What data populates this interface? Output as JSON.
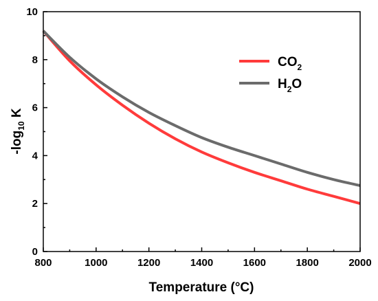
{
  "chart_data": {
    "type": "line",
    "xlabel": "Temperature (°C)",
    "ylabel_parts": {
      "main": "-log",
      "sub": "10",
      "tail": " K"
    },
    "xlim": [
      800,
      2000
    ],
    "ylim": [
      0,
      10
    ],
    "xticks": [
      800,
      1000,
      1200,
      1400,
      1600,
      1800,
      2000
    ],
    "yticks": [
      0,
      2,
      4,
      6,
      8,
      10
    ],
    "grid": false,
    "legend_position": "top-right",
    "x": [
      800,
      900,
      1000,
      1100,
      1200,
      1300,
      1400,
      1500,
      1600,
      1700,
      1800,
      1900,
      2000
    ],
    "series": [
      {
        "name_parts": {
          "pre": "CO",
          "sub": "2",
          "post": ""
        },
        "color": "#ff3b3b",
        "values": [
          9.2,
          7.95,
          6.95,
          6.1,
          5.35,
          4.7,
          4.15,
          3.7,
          3.3,
          2.95,
          2.6,
          2.3,
          2.0
        ]
      },
      {
        "name_parts": {
          "pre": "H",
          "sub": "2",
          "post": "O"
        },
        "color": "#6b6b6b",
        "values": [
          9.2,
          8.1,
          7.2,
          6.45,
          5.8,
          5.25,
          4.75,
          4.35,
          4.0,
          3.65,
          3.3,
          3.0,
          2.75
        ]
      }
    ]
  }
}
